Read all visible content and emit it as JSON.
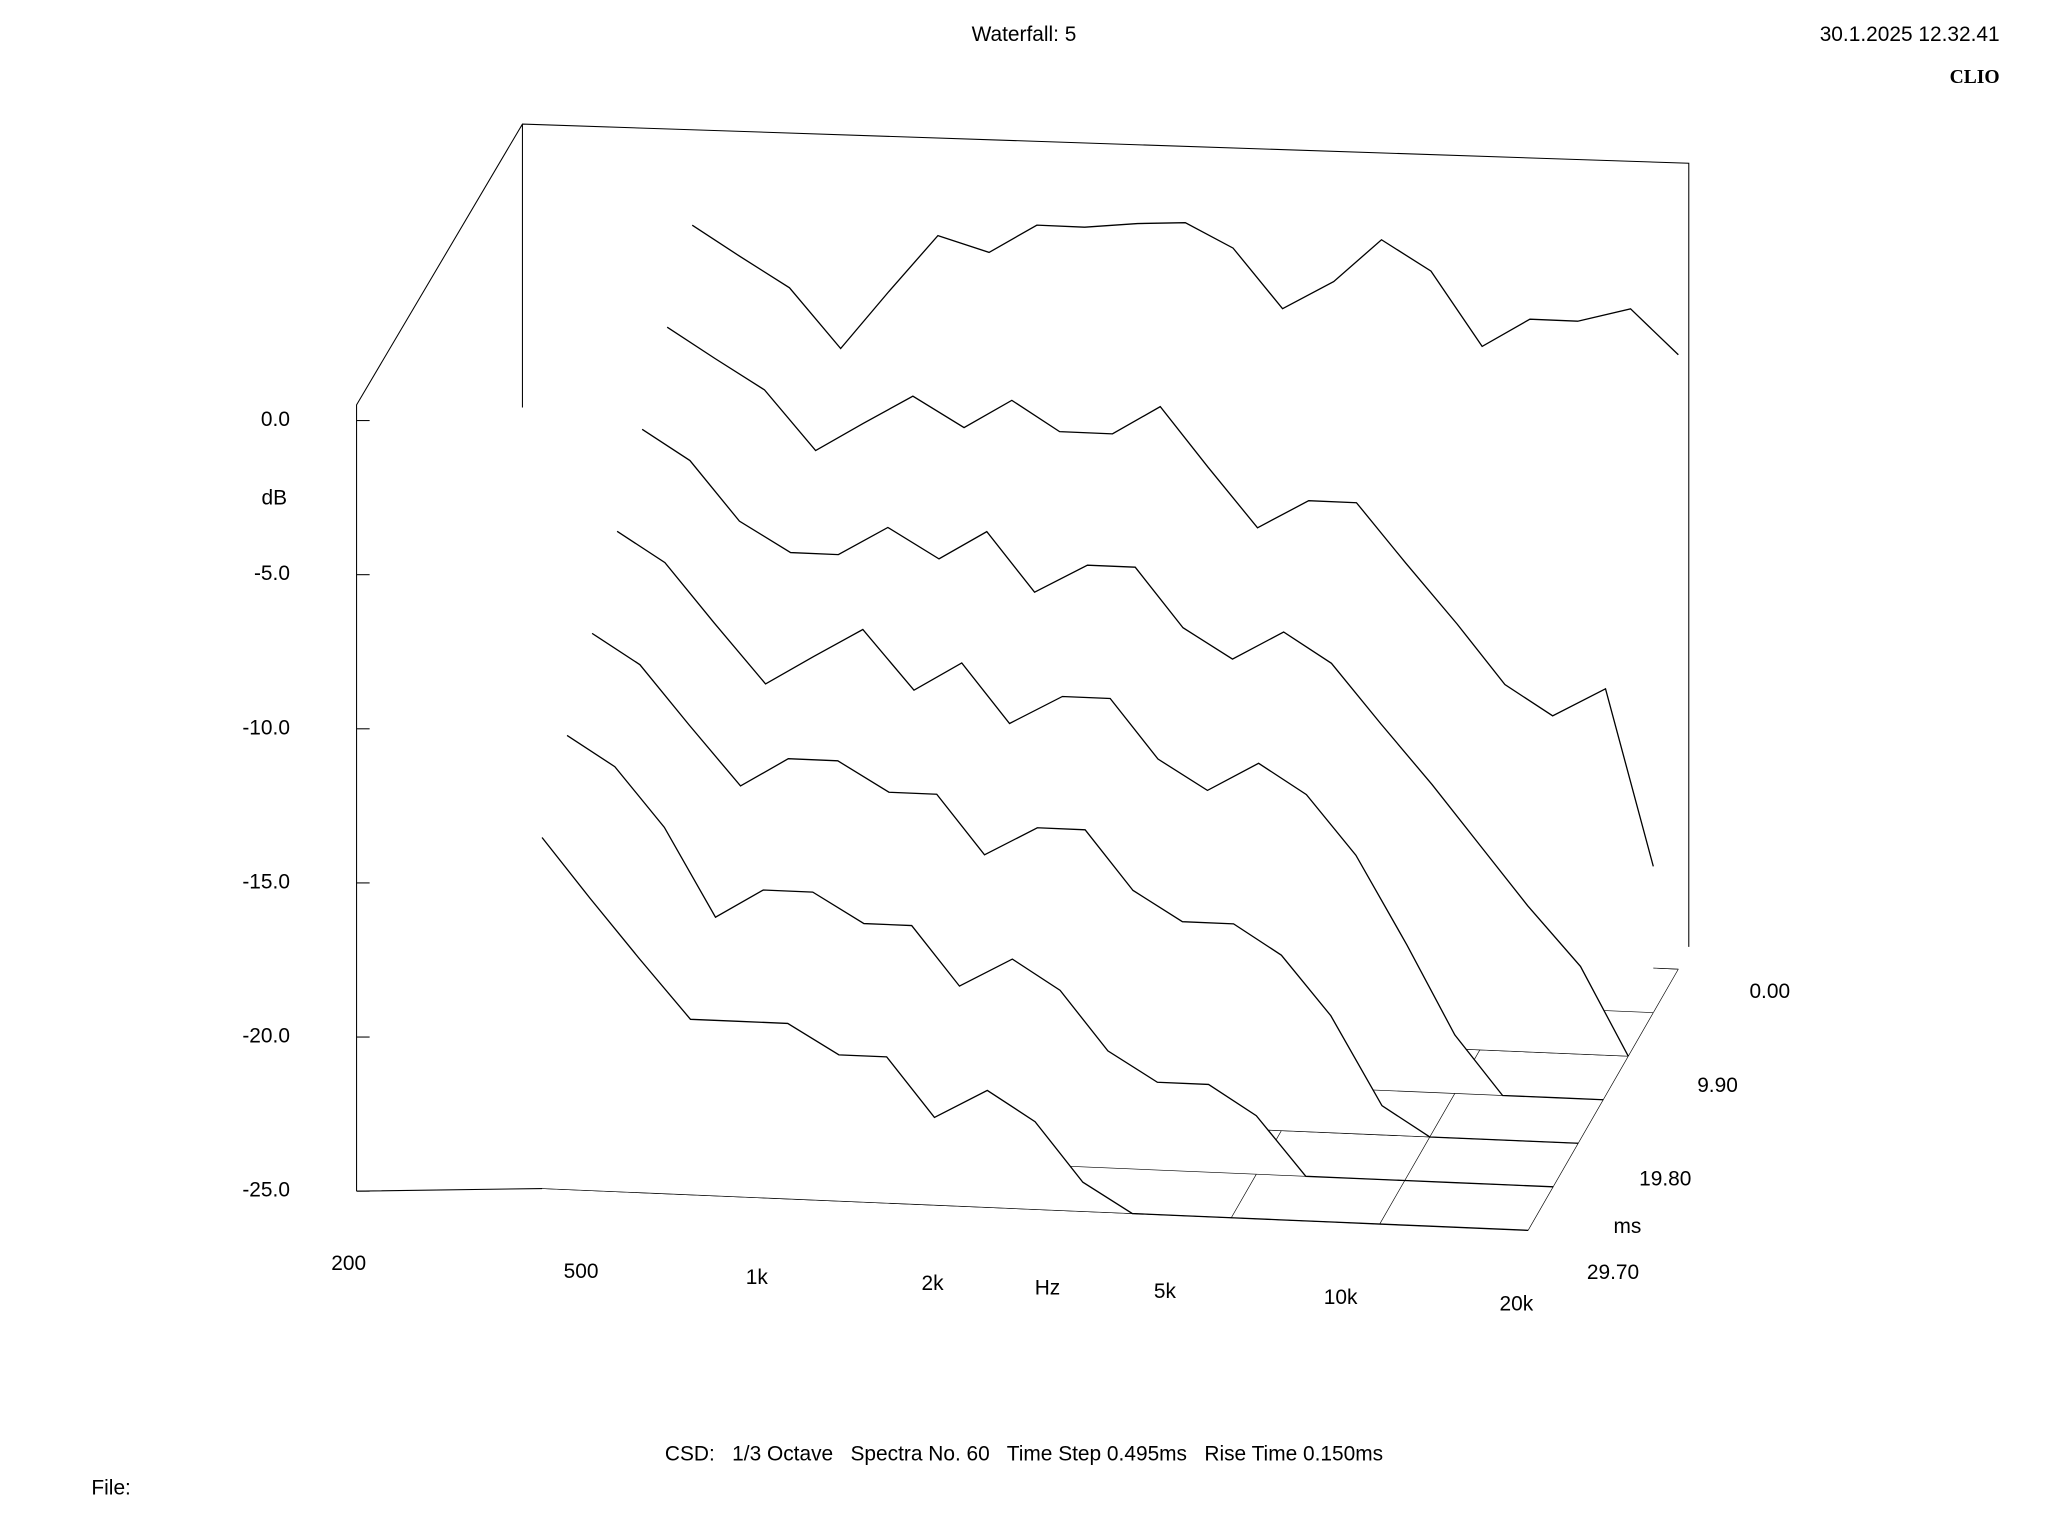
{
  "chart_data": {
    "type": "waterfall",
    "title": "Waterfall: 5",
    "timestamp": "30.1.2025 12.32.41",
    "brand": "CLIO",
    "footer": "CSD:   1/3 Octave   Spectra No. 60   Time Step 0.495ms   Rise Time 0.150ms",
    "file_label": "File:",
    "y_label": "dB",
    "x_label": "Hz",
    "z_label": "ms",
    "x_scale": "log",
    "color": "#000000",
    "x": [
      200,
      250,
      315,
      400,
      500,
      630,
      800,
      1000,
      1250,
      1600,
      2000,
      2500,
      3150,
      4000,
      5000,
      6300,
      8000,
      10000,
      12500,
      16000,
      20000
    ],
    "z": [
      0,
      4.95,
      9.9,
      14.85,
      19.8,
      24.75,
      29.7
    ],
    "series": [
      {
        "values": [
          -1,
          -2,
          -3,
          -5,
          -3,
          -1,
          -1.5,
          -0.5,
          -0.5,
          -0.3,
          -0.2,
          -1,
          -3,
          -2,
          -0.5,
          -1.5,
          -4,
          -3,
          -3,
          -2.5,
          -4
        ]
      },
      {
        "values": [
          -3,
          -4,
          -5,
          -7,
          -6,
          -5,
          -6,
          -5,
          -6,
          -6,
          -5,
          -7,
          -9,
          -8,
          -8,
          -10,
          -12,
          -14,
          -15,
          -14,
          -20
        ]
      },
      {
        "values": [
          -5,
          -6,
          -8,
          -9,
          -9,
          -8,
          -9,
          -8,
          -10,
          -9,
          -9,
          -11,
          -12,
          -11,
          -12,
          -14,
          -16,
          -18,
          -20,
          -22,
          -25
        ]
      },
      {
        "values": [
          -7,
          -8,
          -10,
          -12,
          -11,
          -10,
          -12,
          -11,
          -13,
          -12,
          -12,
          -14,
          -15,
          -14,
          -15,
          -17,
          -20,
          -23,
          -25,
          -25,
          -25
        ]
      },
      {
        "values": [
          -9,
          -10,
          -12,
          -14,
          -13,
          -13,
          -14,
          -14,
          -16,
          -15,
          -15,
          -17,
          -18,
          -18,
          -19,
          -21,
          -24,
          -25,
          -25,
          -25,
          -25
        ]
      },
      {
        "values": [
          -11,
          -12,
          -14,
          -17,
          -16,
          -16,
          -17,
          -17,
          -19,
          -18,
          -19,
          -21,
          -22,
          -22,
          -23,
          -25,
          -25,
          -25,
          -25,
          -25,
          -25
        ]
      },
      {
        "values": [
          -13,
          -15,
          -17,
          -19,
          -19,
          -19,
          -20,
          -20,
          -22,
          -21,
          -22,
          -24,
          -25,
          -25,
          -25,
          -25,
          -25,
          -25,
          -25,
          -25,
          -25
        ]
      }
    ],
    "xlim": [
      200,
      20000
    ],
    "ylim": [
      -25,
      0
    ],
    "zlim": [
      0,
      29.7
    ],
    "xticks": [
      200,
      500,
      {
        "value": 1000,
        "label": "1k"
      },
      {
        "value": 2000,
        "label": "2k"
      },
      {
        "value": 5000,
        "label": "5k"
      },
      {
        "value": 10000,
        "label": "10k"
      },
      {
        "value": 20000,
        "label": "20k"
      }
    ],
    "yticks": [
      {
        "value": 0,
        "label": "0.0"
      },
      {
        "value": -5,
        "label": "-5.0"
      },
      {
        "value": -10,
        "label": "-10.0"
      },
      {
        "value": -15,
        "label": "-15.0"
      },
      {
        "value": -20,
        "label": "-20.0"
      },
      {
        "value": -25,
        "label": "-25.0"
      }
    ],
    "zticks": [
      {
        "value": 0,
        "label": "0.00"
      },
      {
        "value": 9.9,
        "label": "9.90"
      },
      {
        "value": 19.8,
        "label": "19.80"
      },
      {
        "value": 29.7,
        "label": "29.70"
      }
    ]
  }
}
